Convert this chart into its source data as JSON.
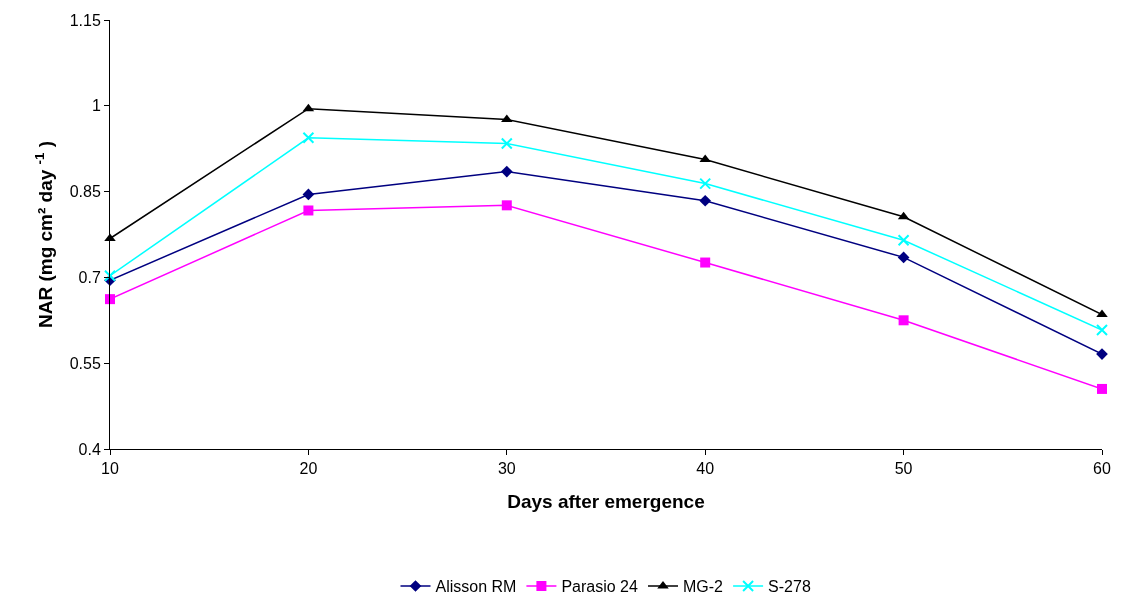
{
  "chart_data": {
    "type": "line",
    "xlabel": "Days after emergence",
    "ylabel": "NAR (mg cm² day $^{-1}$ )",
    "x": [
      10,
      20,
      30,
      40,
      50,
      60
    ],
    "series": [
      {
        "name": "Alisson RM",
        "color": "#000080",
        "marker": "diamond",
        "values": [
          0.695,
          0.845,
          0.885,
          0.834,
          0.735,
          0.566
        ]
      },
      {
        "name": "Parasio 24",
        "color": "#ff00ff",
        "marker": "square",
        "values": [
          0.662,
          0.817,
          0.826,
          0.726,
          0.625,
          0.505
        ]
      },
      {
        "name": "MG-2",
        "color": "#000000",
        "marker": "triangle",
        "values": [
          0.768,
          0.995,
          0.976,
          0.906,
          0.806,
          0.635
        ]
      },
      {
        "name": "S-278",
        "color": "#00ffff",
        "marker": "cross",
        "values": [
          0.703,
          0.944,
          0.934,
          0.864,
          0.765,
          0.608
        ]
      }
    ],
    "xlim": [
      10,
      60
    ],
    "xticks": [
      10,
      20,
      30,
      40,
      50,
      60
    ],
    "ylim": [
      0.4,
      1.15
    ],
    "yticks": [
      0.4,
      0.55,
      0.7,
      0.85,
      1,
      1.15
    ],
    "grid": false,
    "legend": "bottom",
    "line_style": "solid"
  }
}
